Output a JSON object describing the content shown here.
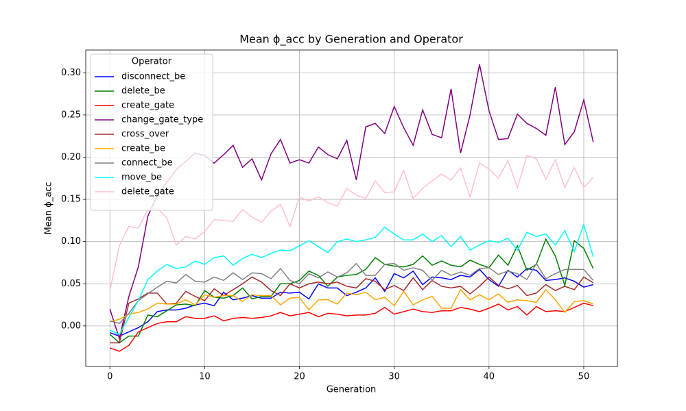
{
  "chart_data": {
    "type": "line",
    "title": "Mean ϕ_acc by Generation and Operator",
    "x_label": "Generation",
    "y_label": "Mean ϕ_acc",
    "legend_title": "Operator",
    "legend": "upper left",
    "grid": true,
    "x": [
      0,
      1,
      2,
      3,
      4,
      5,
      6,
      7,
      8,
      9,
      10,
      11,
      12,
      13,
      14,
      15,
      16,
      17,
      18,
      19,
      20,
      21,
      22,
      23,
      24,
      25,
      26,
      27,
      28,
      29,
      30,
      31,
      32,
      33,
      34,
      35,
      36,
      37,
      38,
      39,
      40,
      41,
      42,
      43,
      44,
      45,
      46,
      47,
      48,
      49,
      50,
      51
    ],
    "xlim": [
      -2.55,
      53.55
    ],
    "xticks": [
      0,
      10,
      20,
      30,
      40,
      50
    ],
    "ylim": [
      -0.048,
      0.327
    ],
    "yticks": [
      {
        "value": 0,
        "label": "0.00"
      },
      {
        "value": 0.05,
        "label": "0.05"
      },
      {
        "value": 0.1,
        "label": "0.10"
      },
      {
        "value": 0.15,
        "label": "0.15"
      },
      {
        "value": 0.2,
        "label": "0.20"
      },
      {
        "value": 0.25,
        "label": "0.25"
      },
      {
        "value": 0.3,
        "label": "0.30"
      }
    ],
    "series": [
      {
        "name": "disconnect_be",
        "color": "#0000ff",
        "values": [
          -0.008,
          -0.012,
          -0.007,
          -0.002,
          0.005,
          0.017,
          0.019,
          0.019,
          0.021,
          0.025,
          0.027,
          0.024,
          0.04,
          0.031,
          0.033,
          0.036,
          0.033,
          0.033,
          0.04,
          0.039,
          0.04,
          0.032,
          0.05,
          0.045,
          0.045,
          0.036,
          0.04,
          0.045,
          0.057,
          0.041,
          0.062,
          0.057,
          0.065,
          0.049,
          0.058,
          0.057,
          0.055,
          0.06,
          0.058,
          0.067,
          0.055,
          0.047,
          0.066,
          0.058,
          0.068,
          0.066,
          0.054,
          0.055,
          0.057,
          0.053,
          0.046,
          0.049
        ]
      },
      {
        "name": "delete_be",
        "color": "#008000",
        "values": [
          -0.01,
          -0.02,
          -0.012,
          -0.012,
          0.013,
          0.011,
          0.018,
          0.025,
          0.026,
          0.024,
          0.042,
          0.034,
          0.033,
          0.036,
          0.045,
          0.032,
          0.035,
          0.035,
          0.05,
          0.05,
          0.054,
          0.065,
          0.06,
          0.047,
          0.058,
          0.06,
          0.061,
          0.067,
          0.081,
          0.073,
          0.071,
          0.07,
          0.073,
          0.083,
          0.072,
          0.077,
          0.072,
          0.07,
          0.078,
          0.073,
          0.069,
          0.084,
          0.072,
          0.095,
          0.066,
          0.073,
          0.103,
          0.083,
          0.048,
          0.101,
          0.092,
          0.068
        ]
      },
      {
        "name": "create_gate",
        "color": "#ff0000",
        "values": [
          -0.026,
          -0.03,
          -0.023,
          -0.007,
          -0.002,
          0.003,
          0.005,
          0.005,
          0.011,
          0.009,
          0.009,
          0.012,
          0.006,
          0.009,
          0.01,
          0.009,
          0.01,
          0.012,
          0.016,
          0.012,
          0.014,
          0.016,
          0.011,
          0.015,
          0.014,
          0.012,
          0.013,
          0.013,
          0.015,
          0.022,
          0.014,
          0.017,
          0.02,
          0.017,
          0.016,
          0.018,
          0.018,
          0.022,
          0.02,
          0.017,
          0.021,
          0.026,
          0.019,
          0.023,
          0.013,
          0.023,
          0.017,
          0.018,
          0.017,
          0.022,
          0.027,
          0.024
        ]
      },
      {
        "name": "change_gate_type",
        "color": "#800080",
        "values": [
          0.02,
          -0.015,
          0.035,
          0.07,
          0.13,
          0.155,
          0.17,
          0.185,
          0.195,
          0.205,
          0.202,
          0.193,
          0.203,
          0.214,
          0.188,
          0.198,
          0.173,
          0.204,
          0.221,
          0.193,
          0.197,
          0.193,
          0.212,
          0.203,
          0.198,
          0.22,
          0.173,
          0.236,
          0.24,
          0.228,
          0.26,
          0.235,
          0.214,
          0.256,
          0.227,
          0.223,
          0.281,
          0.205,
          0.25,
          0.31,
          0.255,
          0.221,
          0.222,
          0.251,
          0.24,
          0.234,
          0.226,
          0.283,
          0.215,
          0.23,
          0.268,
          0.218
        ]
      },
      {
        "name": "cross_over",
        "color": "#a52a2a",
        "values": [
          -0.02,
          -0.02,
          0.027,
          0.032,
          0.039,
          0.039,
          0.026,
          0.027,
          0.041,
          0.035,
          0.03,
          0.044,
          0.036,
          0.043,
          0.05,
          0.058,
          0.052,
          0.042,
          0.036,
          0.05,
          0.045,
          0.05,
          0.052,
          0.05,
          0.052,
          0.047,
          0.045,
          0.056,
          0.053,
          0.043,
          0.048,
          0.042,
          0.057,
          0.043,
          0.054,
          0.047,
          0.045,
          0.047,
          0.038,
          0.047,
          0.058,
          0.048,
          0.044,
          0.048,
          0.036,
          0.039,
          0.049,
          0.042,
          0.047,
          0.043,
          0.058,
          0.051
        ]
      },
      {
        "name": "create_be",
        "color": "#ffa500",
        "values": [
          0.005,
          0.008,
          0.014,
          0.016,
          0.02,
          0.027,
          0.026,
          0.026,
          0.031,
          0.025,
          0.037,
          0.034,
          0.036,
          0.036,
          0.029,
          0.037,
          0.036,
          0.036,
          0.025,
          0.033,
          0.034,
          0.019,
          0.031,
          0.031,
          0.026,
          0.039,
          0.037,
          0.04,
          0.031,
          0.034,
          0.024,
          0.041,
          0.025,
          0.031,
          0.035,
          0.021,
          0.021,
          0.043,
          0.031,
          0.037,
          0.031,
          0.038,
          0.028,
          0.031,
          0.03,
          0.028,
          0.043,
          0.031,
          0.016,
          0.029,
          0.03,
          0.026
        ]
      },
      {
        "name": "connect_be",
        "color": "#808080",
        "values": [
          0.006,
          0.003,
          0.015,
          0.03,
          0.038,
          0.046,
          0.053,
          0.051,
          0.061,
          0.053,
          0.052,
          0.058,
          0.054,
          0.063,
          0.055,
          0.063,
          0.062,
          0.056,
          0.068,
          0.054,
          0.05,
          0.062,
          0.057,
          0.064,
          0.058,
          0.063,
          0.074,
          0.06,
          0.06,
          0.073,
          0.074,
          0.066,
          0.069,
          0.066,
          0.054,
          0.066,
          0.06,
          0.064,
          0.06,
          0.068,
          0.069,
          0.061,
          0.065,
          0.062,
          0.055,
          0.074,
          0.056,
          0.062,
          0.067,
          0.067,
          0.067,
          0.054
        ]
      },
      {
        "name": "move_be",
        "color": "#00ffff",
        "values": [
          -0.005,
          -0.01,
          0.01,
          0.03,
          0.055,
          0.065,
          0.073,
          0.068,
          0.07,
          0.077,
          0.073,
          0.081,
          0.083,
          0.072,
          0.08,
          0.085,
          0.081,
          0.086,
          0.09,
          0.089,
          0.095,
          0.101,
          0.094,
          0.087,
          0.1,
          0.103,
          0.1,
          0.102,
          0.105,
          0.117,
          0.109,
          0.102,
          0.102,
          0.109,
          0.1,
          0.107,
          0.094,
          0.106,
          0.09,
          0.096,
          0.101,
          0.099,
          0.104,
          0.09,
          0.111,
          0.106,
          0.109,
          0.096,
          0.113,
          0.088,
          0.12,
          0.082
        ]
      },
      {
        "name": "delete_gate",
        "color": "#ffc0cb",
        "values": [
          0.042,
          0.095,
          0.118,
          0.116,
          0.138,
          0.14,
          0.128,
          0.096,
          0.106,
          0.103,
          0.112,
          0.126,
          0.125,
          0.124,
          0.138,
          0.129,
          0.123,
          0.136,
          0.144,
          0.118,
          0.153,
          0.148,
          0.153,
          0.146,
          0.142,
          0.163,
          0.155,
          0.151,
          0.172,
          0.158,
          0.159,
          0.184,
          0.151,
          0.163,
          0.172,
          0.18,
          0.173,
          0.187,
          0.153,
          0.193,
          0.186,
          0.175,
          0.196,
          0.164,
          0.202,
          0.198,
          0.174,
          0.197,
          0.164,
          0.188,
          0.164,
          0.176
        ]
      }
    ]
  }
}
